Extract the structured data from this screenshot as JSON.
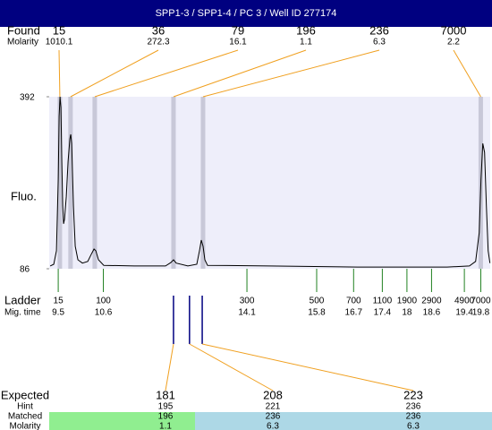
{
  "header": {
    "title": "SPP1-3 / SPP1-4 / PC 3 / Well ID 277174"
  },
  "chart_data": {
    "type": "line",
    "y_label": "Fluo.",
    "ylim": [
      86,
      392
    ],
    "yticks": [
      86,
      392
    ],
    "xlim": [
      9.28,
      20.03
    ],
    "x": [
      9.304,
      9.391,
      9.456,
      9.5,
      9.522,
      9.544,
      9.565,
      9.587,
      9.609,
      9.631,
      9.653,
      9.696,
      9.74,
      9.783,
      9.805,
      9.827,
      9.87,
      9.914,
      9.979,
      10.088,
      10.219,
      10.306,
      10.372,
      10.415,
      10.481,
      10.611,
      11.352,
      12.115,
      12.245,
      12.311,
      12.376,
      12.659,
      12.877,
      12.943,
      12.987,
      13.03,
      13.074,
      13.139,
      14.621,
      16.8,
      18.978,
      19.523,
      19.675,
      19.762,
      19.805,
      19.849,
      19.893,
      19.936,
      19.98,
      20.024
    ],
    "values": [
      91,
      94,
      118,
      245,
      357,
      392,
      373,
      277,
      198,
      166,
      174,
      214,
      277,
      317,
      325,
      309,
      198,
      126,
      102,
      96,
      99,
      112,
      121,
      118,
      102,
      92,
      91,
      91,
      97,
      102,
      96,
      91,
      94,
      118,
      137,
      126,
      102,
      92,
      91,
      89,
      89,
      91,
      99,
      150,
      245,
      309,
      293,
      198,
      118,
      96
    ]
  },
  "found": {
    "label": "Found",
    "molarity_label": "Molarity",
    "sizes": [
      15,
      36,
      79,
      196,
      236,
      7000
    ],
    "molarities": [
      1010.1,
      272.3,
      16.1,
      1.1,
      6.3,
      2.2
    ],
    "mig_times": [
      9.54,
      9.8,
      10.39,
      12.31,
      13.03,
      19.8
    ]
  },
  "ladder": {
    "label": "Ladder",
    "time_label": "Mig. time",
    "sizes": [
      15,
      100,
      300,
      500,
      700,
      1100,
      1900,
      2900,
      4900,
      7000
    ],
    "mig_times": [
      9.5,
      10.6,
      14.1,
      15.8,
      16.7,
      17.4,
      18,
      18.6,
      19.4,
      19.8
    ]
  },
  "expected": {
    "label": "Expected",
    "hint_label": "Hint",
    "matched_label": "Matched",
    "molarity_label": "Molarity",
    "sizes": [
      181,
      208,
      223
    ],
    "hints": [
      195,
      221,
      236
    ],
    "matched": [
      196,
      236,
      236
    ],
    "molarities": [
      1.1,
      6.3,
      6.3
    ],
    "mig_times": [
      12.31,
      12.7,
      13.01
    ]
  }
}
